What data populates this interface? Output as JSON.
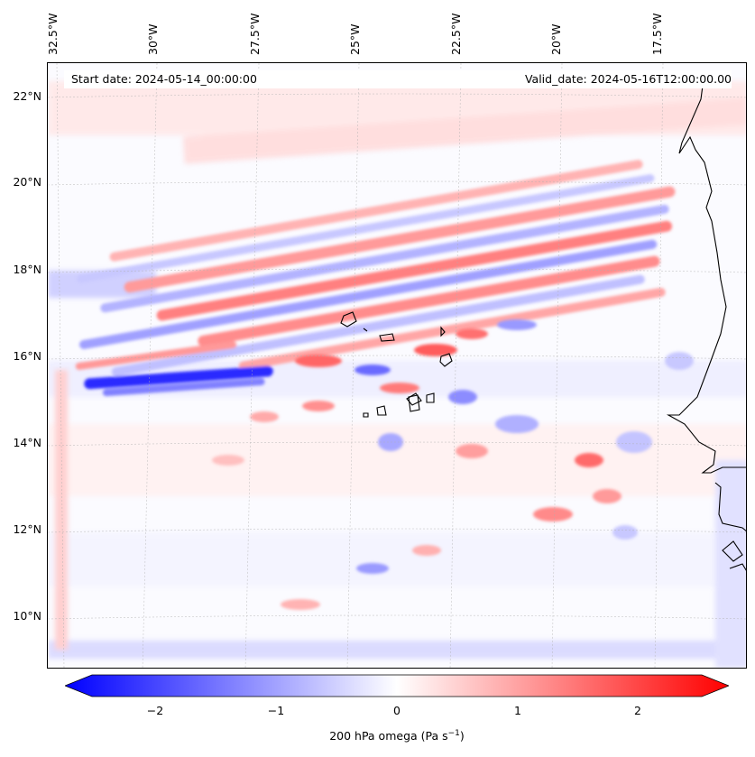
{
  "map": {
    "start_date": "Start date: 2024-05-14_00:00:00",
    "valid_date": "Valid_date: 2024-05-16T12:00:00.00",
    "longitude_labels": [
      "32.5°W",
      "30°W",
      "27.5°W",
      "25°W",
      "22.5°W",
      "20°W",
      "17.5°W"
    ],
    "latitude_labels": [
      "22°N",
      "20°N",
      "18°N",
      "16°N",
      "14°N",
      "12°N",
      "10°N"
    ],
    "field": "200 hPa omega",
    "colormap": "bwr",
    "colors": {
      "negative": "#0000ff",
      "neutral": "#ffffff",
      "positive": "#ff0000",
      "coastline": "#000000"
    }
  },
  "colorbar": {
    "ticks": [
      "−2",
      "−1",
      "0",
      "1",
      "2"
    ],
    "range": [
      -2.6,
      2.6
    ],
    "label": "200 hPa omega (Pa s",
    "label_exp": "−1",
    "label_end": ")"
  }
}
